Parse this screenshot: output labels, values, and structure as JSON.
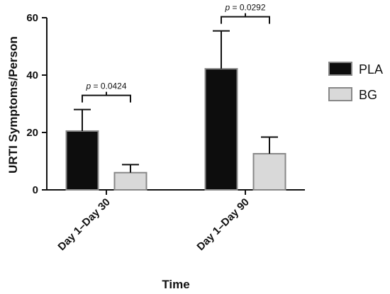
{
  "chart_data": {
    "type": "bar",
    "categories": [
      "Day 1–Day 30",
      "Day 1–Day 90"
    ],
    "series": [
      {
        "name": "PLA",
        "color": "#0d0d0d",
        "stroke": "#888888",
        "values": [
          20.5,
          42.2
        ],
        "errors": [
          7.5,
          13.2
        ]
      },
      {
        "name": "BG",
        "color": "#d9d9d9",
        "stroke": "#888888",
        "values": [
          6.0,
          12.6
        ],
        "errors": [
          2.8,
          5.8
        ]
      }
    ],
    "xlabel": "Time",
    "ylabel": "URTI Symptoms/Person",
    "ylim": [
      0,
      60
    ],
    "yticks": [
      0,
      20,
      40,
      60
    ],
    "grid": false,
    "legend_position": "right",
    "annotations": [
      {
        "category_index": 0,
        "p_label": "p",
        "p_value": " = 0.0424"
      },
      {
        "category_index": 1,
        "p_label": "p",
        "p_value": " = 0.0292"
      }
    ]
  }
}
